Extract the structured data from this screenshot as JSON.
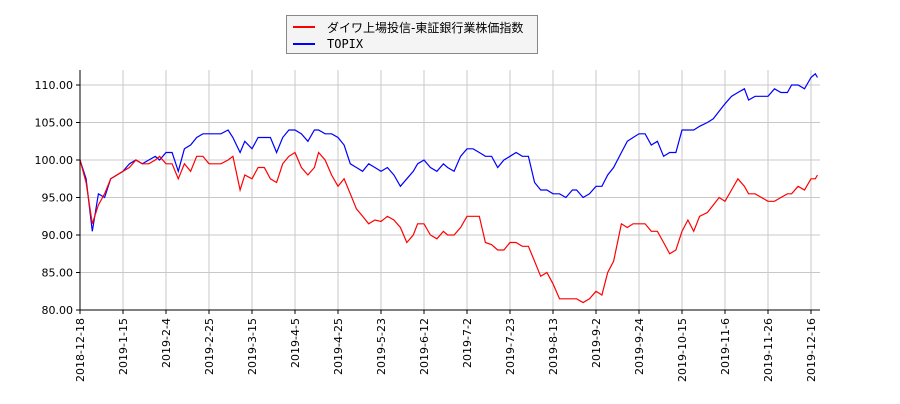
{
  "chart_data": {
    "type": "line",
    "title": "",
    "xlabel": "",
    "ylabel": "",
    "ylim": [
      80,
      112
    ],
    "grid": true,
    "legend_placement": "top-center",
    "y_ticks": [
      "80.00",
      "85.00",
      "90.00",
      "95.00",
      "100.00",
      "105.00",
      "110.00"
    ],
    "x_ticks": [
      "2018-12-18",
      "2019-1-15",
      "2019-2-4",
      "2019-2-25",
      "2019-3-15",
      "2019-4-5",
      "2019-4-25",
      "2019-5-23",
      "2019-6-12",
      "2019-7-2",
      "2019-7-23",
      "2019-8-13",
      "2019-9-2",
      "2019-9-24",
      "2019-10-15",
      "2019-11-6",
      "2019-11-26",
      "2019-12-16"
    ],
    "x": [
      "2018-12-18",
      "2018-12-22",
      "2018-12-26",
      "2018-12-30",
      "2019-01-03",
      "2019-01-07",
      "2019-01-11",
      "2019-01-15",
      "2019-01-18",
      "2019-01-21",
      "2019-01-24",
      "2019-01-27",
      "2019-01-30",
      "2019-02-01",
      "2019-02-04",
      "2019-02-07",
      "2019-02-10",
      "2019-02-13",
      "2019-02-16",
      "2019-02-19",
      "2019-02-22",
      "2019-02-25",
      "2019-02-28",
      "2019-03-02",
      "2019-03-05",
      "2019-03-07",
      "2019-03-10",
      "2019-03-12",
      "2019-03-15",
      "2019-03-18",
      "2019-03-21",
      "2019-03-24",
      "2019-03-27",
      "2019-03-30",
      "2019-04-02",
      "2019-04-05",
      "2019-04-08",
      "2019-04-11",
      "2019-04-14",
      "2019-04-16",
      "2019-04-19",
      "2019-04-22",
      "2019-04-25",
      "2019-04-29",
      "2019-05-03",
      "2019-05-07",
      "2019-05-11",
      "2019-05-15",
      "2019-05-19",
      "2019-05-23",
      "2019-05-26",
      "2019-05-29",
      "2019-06-01",
      "2019-06-04",
      "2019-06-07",
      "2019-06-09",
      "2019-06-12",
      "2019-06-15",
      "2019-06-18",
      "2019-06-21",
      "2019-06-23",
      "2019-06-26",
      "2019-06-29",
      "2019-07-02",
      "2019-07-05",
      "2019-07-08",
      "2019-07-11",
      "2019-07-14",
      "2019-07-17",
      "2019-07-20",
      "2019-07-23",
      "2019-07-26",
      "2019-07-29",
      "2019-08-01",
      "2019-08-04",
      "2019-08-07",
      "2019-08-10",
      "2019-08-13",
      "2019-08-16",
      "2019-08-19",
      "2019-08-22",
      "2019-08-24",
      "2019-08-27",
      "2019-08-30",
      "2019-09-02",
      "2019-09-05",
      "2019-09-08",
      "2019-09-11",
      "2019-09-15",
      "2019-09-18",
      "2019-09-21",
      "2019-09-24",
      "2019-09-27",
      "2019-09-30",
      "2019-10-03",
      "2019-10-06",
      "2019-10-09",
      "2019-10-12",
      "2019-10-15",
      "2019-10-18",
      "2019-10-21",
      "2019-10-24",
      "2019-10-28",
      "2019-10-31",
      "2019-11-03",
      "2019-11-06",
      "2019-11-09",
      "2019-11-12",
      "2019-11-15",
      "2019-11-17",
      "2019-11-20",
      "2019-11-23",
      "2019-11-26",
      "2019-11-29",
      "2019-12-02",
      "2019-12-05",
      "2019-12-07",
      "2019-12-10",
      "2019-12-13",
      "2019-12-16",
      "2019-12-18",
      "2019-12-19"
    ],
    "series": [
      {
        "name": "ダイワ上場投信-東証銀行業株価指数",
        "color": "#ff0000",
        "values": [
          100,
          97,
          91.5,
          94,
          95.5,
          97.5,
          98,
          98.5,
          99,
          100,
          99.5,
          99.5,
          100,
          100.5,
          99.5,
          99.5,
          97.5,
          99.5,
          98.5,
          100.5,
          100.5,
          99.5,
          99.5,
          99.5,
          100,
          100.5,
          96,
          98,
          97.5,
          99,
          99,
          97.5,
          97,
          99.5,
          100.5,
          101,
          99,
          98,
          99,
          101,
          100,
          98,
          96.5,
          97.5,
          95.5,
          93.5,
          92.5,
          91.5,
          92,
          91.8,
          92.5,
          92,
          91,
          89,
          90,
          91.5,
          91.5,
          90,
          89.5,
          90.5,
          90,
          90,
          91,
          92.5,
          92.5,
          92.5,
          89,
          88.7,
          88,
          88,
          89,
          89,
          88.5,
          88.5,
          86.5,
          84.5,
          85,
          83.5,
          81.5,
          81.5,
          81.5,
          81.5,
          81,
          81.5,
          82.5,
          82,
          85,
          86.5,
          91.5,
          91,
          91.5,
          91.5,
          91.5,
          90.5,
          90.5,
          89,
          87.5,
          88,
          90.5,
          92,
          90.5,
          92.5,
          93,
          94,
          95,
          94.5,
          96,
          97.5,
          96.5,
          95.5,
          95.5,
          95,
          94.5,
          94.5,
          95,
          95.5,
          95.5,
          96.5,
          96,
          97.5,
          97.5,
          98
        ]
      },
      {
        "name": "TOPIX",
        "color": "#0000ff",
        "values": [
          100,
          97.5,
          90.5,
          95.5,
          95,
          97.5,
          98,
          98.5,
          99.5,
          100,
          99.5,
          100,
          100.5,
          100,
          101,
          101,
          98.5,
          101.5,
          102,
          103,
          103.5,
          103.5,
          103.5,
          103.5,
          104,
          103,
          101,
          102.5,
          101.5,
          103,
          103,
          103,
          101,
          103,
          104,
          104,
          103.5,
          102.5,
          104,
          104,
          103.5,
          103.5,
          103,
          102,
          99.5,
          99,
          98.5,
          99.5,
          99,
          98.5,
          99,
          98,
          96.5,
          97.5,
          98.5,
          99.5,
          100,
          99,
          98.5,
          99.5,
          99,
          98.5,
          100.5,
          101.5,
          101.5,
          101,
          100.5,
          100.5,
          99,
          100,
          100.5,
          101,
          100.5,
          100.5,
          97,
          96,
          96,
          95.5,
          95.5,
          95,
          96,
          96,
          95,
          95.5,
          96.5,
          96.5,
          98,
          99,
          101,
          102.5,
          103,
          103.5,
          103.5,
          102,
          102.5,
          100.5,
          101,
          101,
          104,
          104,
          104,
          104.5,
          105,
          105.5,
          106.5,
          107.5,
          108.5,
          109,
          109.5,
          108,
          108.5,
          108.5,
          108.5,
          109.5,
          109,
          109,
          110,
          110,
          109.5,
          111,
          111.5,
          111
        ]
      }
    ]
  }
}
